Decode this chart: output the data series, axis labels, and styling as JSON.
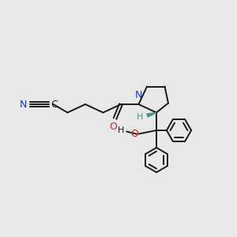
{
  "bg_color": "#e8e8e8",
  "bond_color": "#1a1a1a",
  "N_color": "#2233bb",
  "O_color": "#cc2222",
  "teal_color": "#4a9090",
  "lw": 1.4,
  "xlim": [
    0,
    10
  ],
  "ylim": [
    0,
    10
  ]
}
